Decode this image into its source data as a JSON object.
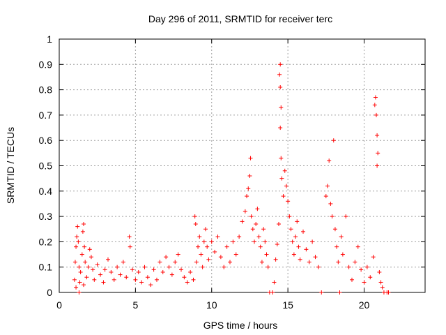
{
  "chart_data": {
    "type": "scatter",
    "title": "Day 296 of 2011, SRMTID for receiver terc",
    "xlabel": "GPS time / hours",
    "ylabel": "SRMTID / TECUs",
    "xlim": [
      0,
      24
    ],
    "ylim": [
      0,
      1
    ],
    "xticks": [
      0,
      5,
      10,
      15,
      20
    ],
    "xtick_labels": [
      "0",
      "5",
      "10",
      "15",
      "20"
    ],
    "yticks": [
      0,
      0.1,
      0.2,
      0.3,
      0.4,
      0.5,
      0.6,
      0.7,
      0.8,
      0.9,
      1
    ],
    "ytick_labels": [
      "0",
      "0.1",
      "0.2",
      "0.3",
      "0.4",
      "0.5",
      "0.6",
      "0.7",
      "0.8",
      "0.9",
      "1"
    ],
    "grid": true,
    "marker": "+",
    "series": [
      {
        "name": "SRMTID",
        "color": "#ff0000",
        "points": [
          [
            1.0,
            0.05
          ],
          [
            1.05,
            0.12
          ],
          [
            1.1,
            0.18
          ],
          [
            1.15,
            0.22
          ],
          [
            1.2,
            0.26
          ],
          [
            1.25,
            0.2
          ],
          [
            1.3,
            0.1
          ],
          [
            1.35,
            0.04
          ],
          [
            1.4,
            0.08
          ],
          [
            1.5,
            0.15
          ],
          [
            1.55,
            0.24
          ],
          [
            1.6,
            0.27
          ],
          [
            1.65,
            0.18
          ],
          [
            1.7,
            0.12
          ],
          [
            1.8,
            0.06
          ],
          [
            1.9,
            0.1
          ],
          [
            2.0,
            0.17
          ],
          [
            2.1,
            0.14
          ],
          [
            2.2,
            0.09
          ],
          [
            2.3,
            0.05
          ],
          [
            1.1,
            0.02
          ],
          [
            1.3,
            0.0
          ],
          [
            1.6,
            0.03
          ],
          [
            2.5,
            0.11
          ],
          [
            2.7,
            0.07
          ],
          [
            2.9,
            0.04
          ],
          [
            3.0,
            0.09
          ],
          [
            3.2,
            0.13
          ],
          [
            3.4,
            0.08
          ],
          [
            3.6,
            0.05
          ],
          [
            3.8,
            0.1
          ],
          [
            4.0,
            0.07
          ],
          [
            4.2,
            0.12
          ],
          [
            4.4,
            0.06
          ],
          [
            4.6,
            0.22
          ],
          [
            4.65,
            0.18
          ],
          [
            4.8,
            0.09
          ],
          [
            5.0,
            0.05
          ],
          [
            5.2,
            0.08
          ],
          [
            5.4,
            0.04
          ],
          [
            5.6,
            0.1
          ],
          [
            5.8,
            0.06
          ],
          [
            6.0,
            0.03
          ],
          [
            6.2,
            0.09
          ],
          [
            6.4,
            0.05
          ],
          [
            6.6,
            0.12
          ],
          [
            6.8,
            0.08
          ],
          [
            7.0,
            0.14
          ],
          [
            7.2,
            0.1
          ],
          [
            7.4,
            0.07
          ],
          [
            7.6,
            0.12
          ],
          [
            7.8,
            0.15
          ],
          [
            8.0,
            0.09
          ],
          [
            8.2,
            0.06
          ],
          [
            8.4,
            0.04
          ],
          [
            8.6,
            0.08
          ],
          [
            8.8,
            0.05
          ],
          [
            8.9,
            0.3
          ],
          [
            8.95,
            0.27
          ],
          [
            9.0,
            0.12
          ],
          [
            9.1,
            0.18
          ],
          [
            9.2,
            0.22
          ],
          [
            9.3,
            0.15
          ],
          [
            9.4,
            0.1
          ],
          [
            9.5,
            0.2
          ],
          [
            9.6,
            0.25
          ],
          [
            9.7,
            0.18
          ],
          [
            9.8,
            0.13
          ],
          [
            10.0,
            0.2
          ],
          [
            10.2,
            0.16
          ],
          [
            10.4,
            0.22
          ],
          [
            10.6,
            0.14
          ],
          [
            10.8,
            0.1
          ],
          [
            11.0,
            0.18
          ],
          [
            11.2,
            0.12
          ],
          [
            11.4,
            0.2
          ],
          [
            11.6,
            0.15
          ],
          [
            11.8,
            0.22
          ],
          [
            12.0,
            0.28
          ],
          [
            12.2,
            0.32
          ],
          [
            12.3,
            0.38
          ],
          [
            12.4,
            0.41
          ],
          [
            12.5,
            0.46
          ],
          [
            12.55,
            0.53
          ],
          [
            12.6,
            0.3
          ],
          [
            12.7,
            0.25
          ],
          [
            12.8,
            0.2
          ],
          [
            12.9,
            0.27
          ],
          [
            13.0,
            0.33
          ],
          [
            13.1,
            0.22
          ],
          [
            13.2,
            0.18
          ],
          [
            13.3,
            0.12
          ],
          [
            13.4,
            0.25
          ],
          [
            13.5,
            0.2
          ],
          [
            13.6,
            0.15
          ],
          [
            13.7,
            0.1
          ],
          [
            13.8,
            0.0
          ],
          [
            14.0,
            0.0
          ],
          [
            14.1,
            0.04
          ],
          [
            14.2,
            0.13
          ],
          [
            14.3,
            0.19
          ],
          [
            14.4,
            0.27
          ],
          [
            14.45,
            0.86
          ],
          [
            14.5,
            0.9
          ],
          [
            14.5,
            0.81
          ],
          [
            14.55,
            0.73
          ],
          [
            14.5,
            0.65
          ],
          [
            14.55,
            0.53
          ],
          [
            14.6,
            0.45
          ],
          [
            14.7,
            0.38
          ],
          [
            14.8,
            0.48
          ],
          [
            14.9,
            0.42
          ],
          [
            15.0,
            0.36
          ],
          [
            15.1,
            0.3
          ],
          [
            15.2,
            0.25
          ],
          [
            15.3,
            0.2
          ],
          [
            15.4,
            0.15
          ],
          [
            15.5,
            0.22
          ],
          [
            15.6,
            0.28
          ],
          [
            15.7,
            0.18
          ],
          [
            15.8,
            0.13
          ],
          [
            16.0,
            0.24
          ],
          [
            16.2,
            0.17
          ],
          [
            16.4,
            0.12
          ],
          [
            16.6,
            0.2
          ],
          [
            16.8,
            0.14
          ],
          [
            17.0,
            0.1
          ],
          [
            17.2,
            0.0
          ],
          [
            17.5,
            0.38
          ],
          [
            17.6,
            0.42
          ],
          [
            17.7,
            0.52
          ],
          [
            17.8,
            0.35
          ],
          [
            17.9,
            0.3
          ],
          [
            18.0,
            0.6
          ],
          [
            18.1,
            0.25
          ],
          [
            18.2,
            0.18
          ],
          [
            18.3,
            0.12
          ],
          [
            18.4,
            0.0
          ],
          [
            18.5,
            0.22
          ],
          [
            18.6,
            0.15
          ],
          [
            18.8,
            0.3
          ],
          [
            19.0,
            0.1
          ],
          [
            19.2,
            0.05
          ],
          [
            19.4,
            0.12
          ],
          [
            19.6,
            0.18
          ],
          [
            19.8,
            0.09
          ],
          [
            20.0,
            0.04
          ],
          [
            20.2,
            0.1
          ],
          [
            20.4,
            0.06
          ],
          [
            20.6,
            0.14
          ],
          [
            20.7,
            0.74
          ],
          [
            20.75,
            0.77
          ],
          [
            20.8,
            0.7
          ],
          [
            20.85,
            0.62
          ],
          [
            20.9,
            0.55
          ],
          [
            20.85,
            0.5
          ],
          [
            21.0,
            0.08
          ],
          [
            21.1,
            0.04
          ],
          [
            21.2,
            0.02
          ],
          [
            21.3,
            0.0
          ],
          [
            21.5,
            0.0
          ],
          [
            21.6,
            0.0
          ]
        ]
      }
    ]
  }
}
